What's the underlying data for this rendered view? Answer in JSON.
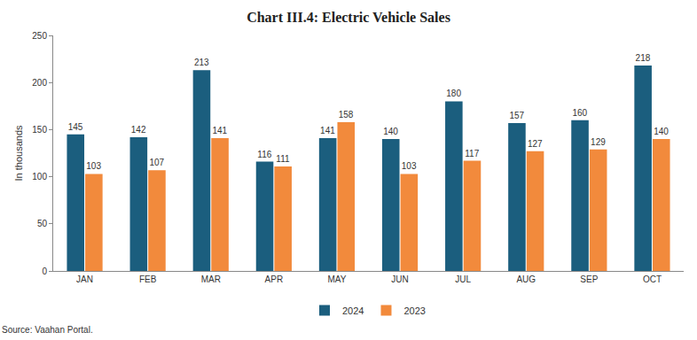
{
  "chart_data": {
    "type": "bar",
    "title": "Chart III.4: Electric Vehicle Sales",
    "y_label": "In thousands",
    "source": "Source: Vaahan Portal.",
    "categories": [
      "JAN",
      "FEB",
      "MAR",
      "APR",
      "MAY",
      "JUN",
      "JUL",
      "AUG",
      "SEP",
      "OCT"
    ],
    "series": [
      {
        "name": "2024",
        "color": "#1b5e7e",
        "values": [
          145,
          142,
          213,
          116,
          141,
          140,
          180,
          157,
          160,
          218
        ]
      },
      {
        "name": "2023",
        "color": "#f28a3c",
        "values": [
          103,
          107,
          141,
          111,
          158,
          103,
          117,
          127,
          129,
          140
        ]
      }
    ],
    "ylim": [
      0,
      250
    ],
    "yticks": [
      0,
      50,
      100,
      150,
      200,
      250
    ],
    "grid": false,
    "legend": "bottom",
    "data_labels": true
  }
}
